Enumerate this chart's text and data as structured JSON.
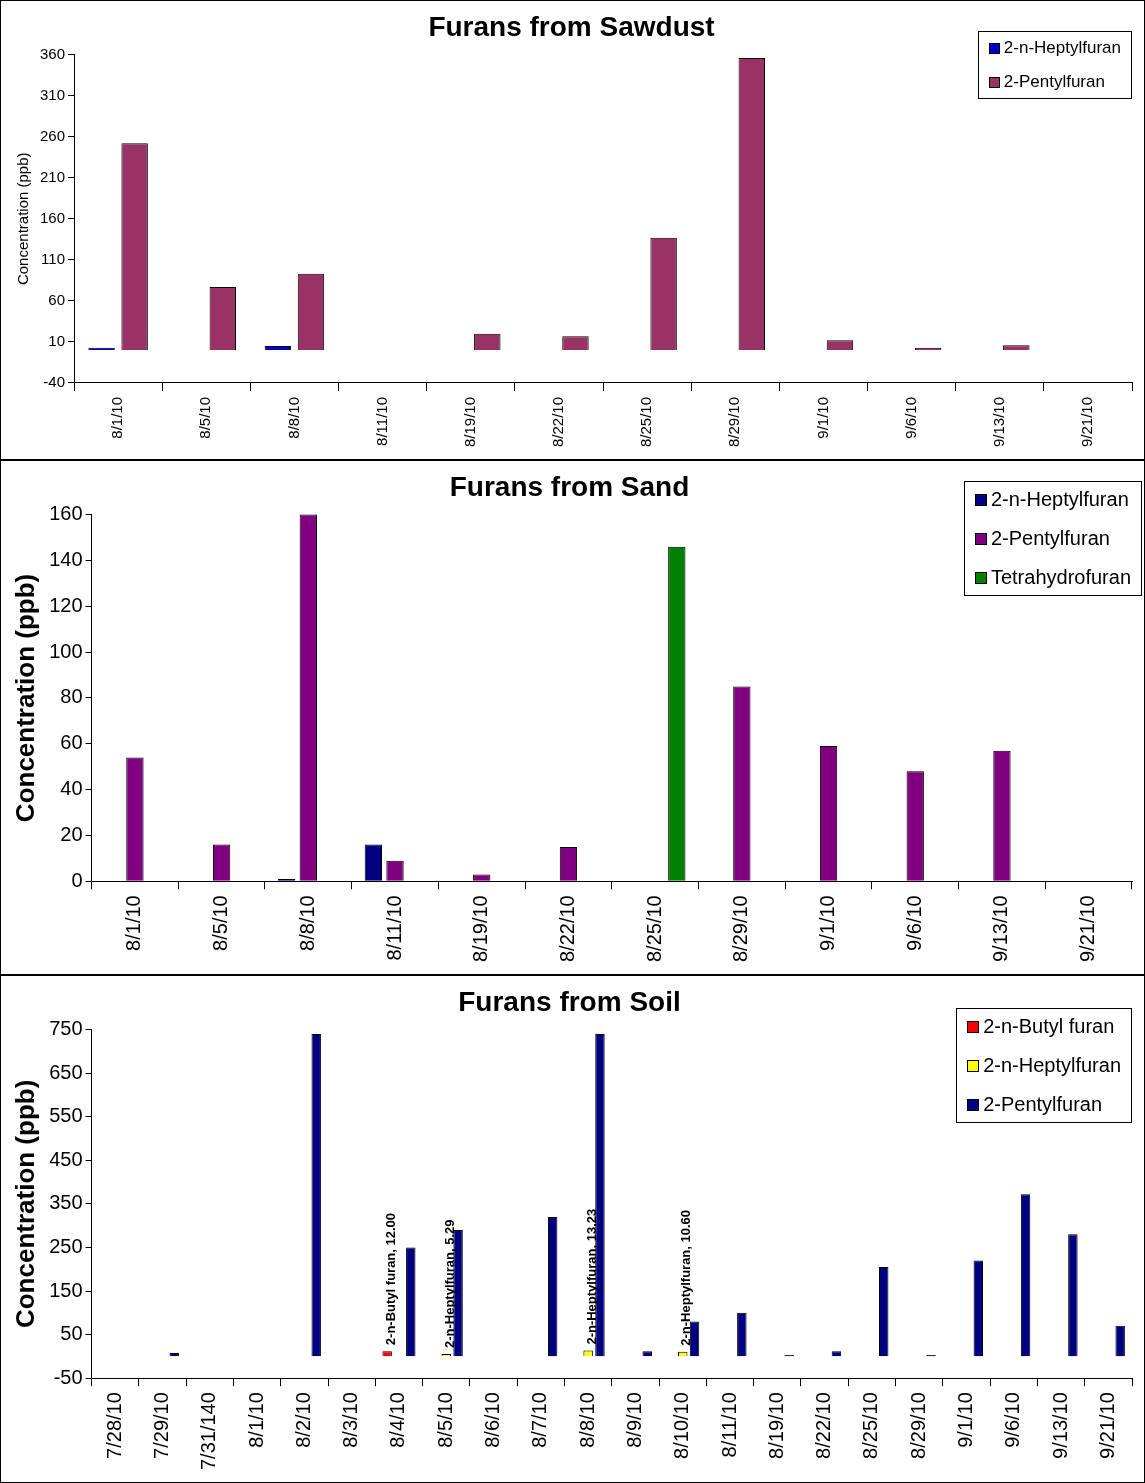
{
  "chart_data": [
    {
      "type": "bar",
      "title": "Furans from Sawdust",
      "ylabel": "Concentration (ppb)",
      "categories": [
        "8/1/10",
        "8/5/10",
        "8/8/10",
        "8/11/10",
        "8/19/10",
        "8/22/10",
        "8/25/10",
        "8/29/10",
        "9/1/10",
        "9/6/10",
        "9/13/10",
        "9/21/10"
      ],
      "series": [
        {
          "name": "2-n-Heptylfuran",
          "color": "#0000cc",
          "values": [
            3,
            null,
            5,
            null,
            null,
            null,
            null,
            null,
            null,
            null,
            null,
            null
          ]
        },
        {
          "name": "2-Pentylfuran",
          "color": "#993366",
          "values": [
            252,
            77,
            93,
            null,
            20,
            17,
            137,
            356,
            12,
            3,
            6,
            null
          ]
        }
      ],
      "ylim": [
        -40,
        360
      ],
      "yticks": [
        -40,
        10,
        60,
        110,
        160,
        210,
        260,
        310,
        360
      ],
      "grid": false,
      "legend": "top right"
    },
    {
      "type": "bar",
      "title": "Furans from Sand",
      "ylabel": "Concentration (ppb)",
      "categories": [
        "8/1/10",
        "8/5/10",
        "8/8/10",
        "8/11/10",
        "8/19/10",
        "8/22/10",
        "8/25/10",
        "8/29/10",
        "9/1/10",
        "9/6/10",
        "9/13/10",
        "9/21/10"
      ],
      "series": [
        {
          "name": "2-n-Heptylfuran",
          "color": "#000080",
          "values": [
            null,
            null,
            1,
            16,
            null,
            null,
            null,
            null,
            null,
            null,
            null,
            null
          ]
        },
        {
          "name": "2-Pentylfuran",
          "color": "#800080",
          "values": [
            54,
            16,
            160,
            9,
            3,
            15,
            null,
            85,
            59,
            48,
            57,
            null
          ]
        },
        {
          "name": "Tetrahydrofuran",
          "color": "#008000",
          "values": [
            null,
            null,
            null,
            null,
            null,
            null,
            146,
            null,
            null,
            null,
            null,
            null
          ]
        }
      ],
      "ylim": [
        0,
        160
      ],
      "yticks": [
        0,
        20,
        40,
        60,
        80,
        100,
        120,
        140,
        160
      ],
      "grid": false,
      "legend": "top right"
    },
    {
      "type": "bar",
      "title": "Furans from Soil",
      "ylabel": "Concentration (ppb)",
      "categories": [
        "7/28/10",
        "7/29/10",
        "7/31/140",
        "8/1/10",
        "8/2/10",
        "8/3/10",
        "8/4/10",
        "8/5/10",
        "8/6/10",
        "8/7/10",
        "8/8/10",
        "8/9/10",
        "8/10/10",
        "8/11/10",
        "8/19/10",
        "8/22/10",
        "8/25/10",
        "8/29/10",
        "9/1/10",
        "9/6/10",
        "9/13/10",
        "9/21/10"
      ],
      "series": [
        {
          "name": "2-n-Butyl furan",
          "color": "#ff0000",
          "values": [
            null,
            null,
            null,
            null,
            null,
            null,
            12.0,
            null,
            null,
            null,
            null,
            null,
            null,
            null,
            null,
            null,
            null,
            null,
            null,
            null,
            null,
            null
          ],
          "value_labels": [
            null,
            null,
            null,
            null,
            null,
            null,
            "2-n-Butyl furan, 12.00",
            null,
            null,
            null,
            null,
            null,
            null,
            null,
            null,
            null,
            null,
            null,
            null,
            null,
            null,
            null
          ]
        },
        {
          "name": "2-n-Heptylfuran",
          "color": "#ffff00",
          "values": [
            null,
            null,
            null,
            null,
            null,
            null,
            null,
            5.29,
            null,
            null,
            13.23,
            null,
            10.6,
            null,
            null,
            null,
            null,
            null,
            null,
            null,
            null,
            null
          ],
          "value_labels": [
            null,
            null,
            null,
            null,
            null,
            null,
            null,
            "2-n-Heptylfuran, 5.29",
            null,
            null,
            "2-n-Heptylfuran, 13.23",
            null,
            "2-n-Heptylfuran, 10.60",
            null,
            null,
            null,
            null,
            null,
            null,
            null,
            null,
            null
          ]
        },
        {
          "name": "2-Pentylfuran",
          "color": "#000080",
          "values": [
            null,
            8,
            null,
            null,
            740,
            null,
            250,
            290,
            null,
            320,
            740,
            12,
            80,
            100,
            3,
            12,
            205,
            3,
            220,
            372,
            280,
            70
          ]
        }
      ],
      "ylim": [
        -50,
        750
      ],
      "yticks": [
        -50,
        50,
        150,
        250,
        350,
        450,
        550,
        650,
        750
      ],
      "grid": false,
      "legend": "top right"
    }
  ]
}
